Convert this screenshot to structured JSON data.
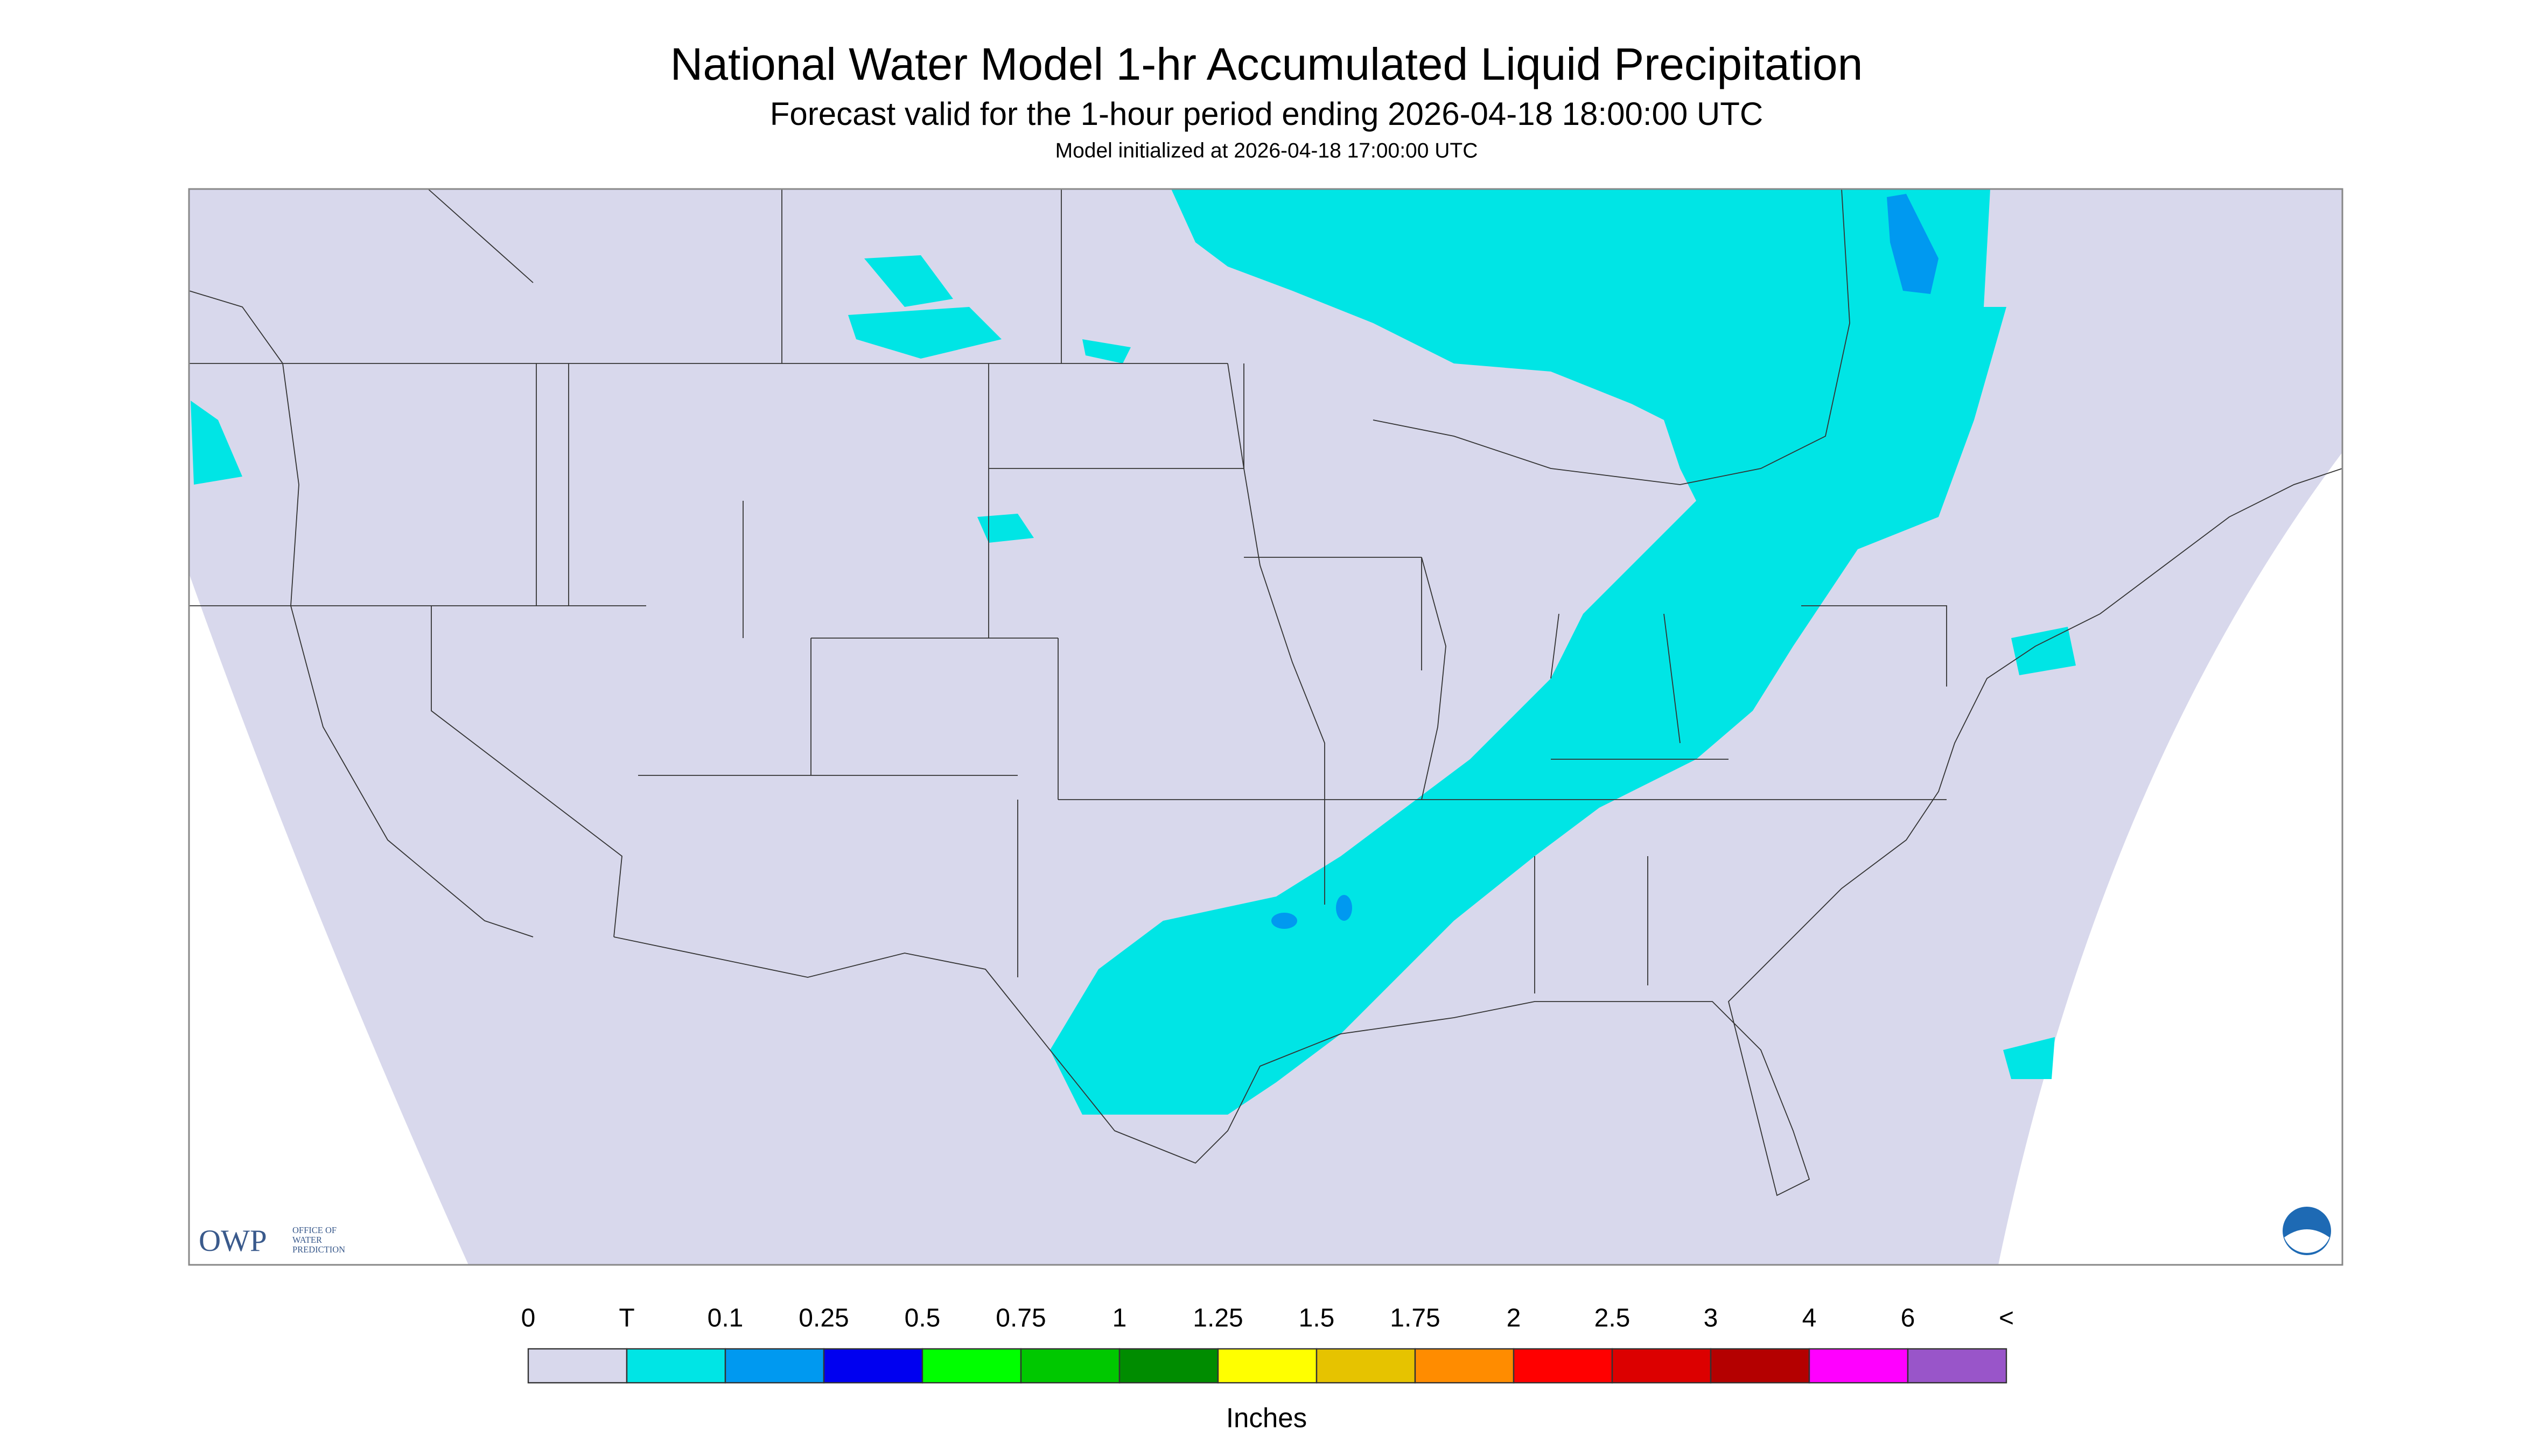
{
  "header": {
    "title": "National Water Model 1-hr Accumulated Liquid Precipitation",
    "subtitle": "Forecast valid for the 1-hour period ending 2026-04-18 18:00:00 UTC",
    "note": "Model initialized at 2026-04-18 17:00:00 UTC"
  },
  "logo": {
    "name": "OWP",
    "lines": [
      "OFFICE OF",
      "WATER",
      "PREDICTION"
    ]
  },
  "legend": {
    "labels": [
      "0",
      "T",
      "0.1",
      "0.25",
      "0.5",
      "0.75",
      "1",
      "1.25",
      "1.5",
      "1.75",
      "2",
      "2.5",
      "3",
      "4",
      "6",
      "<"
    ],
    "colors": [
      "#d8d8ec",
      "#00e5e5",
      "#0099f0",
      "#0000f0",
      "#00ff00",
      "#00c800",
      "#008c00",
      "#ffff00",
      "#e6c300",
      "#ff8c00",
      "#ff0000",
      "#dc0000",
      "#b40000",
      "#ff00ff",
      "#9955c9"
    ],
    "unit": "Inches"
  }
}
